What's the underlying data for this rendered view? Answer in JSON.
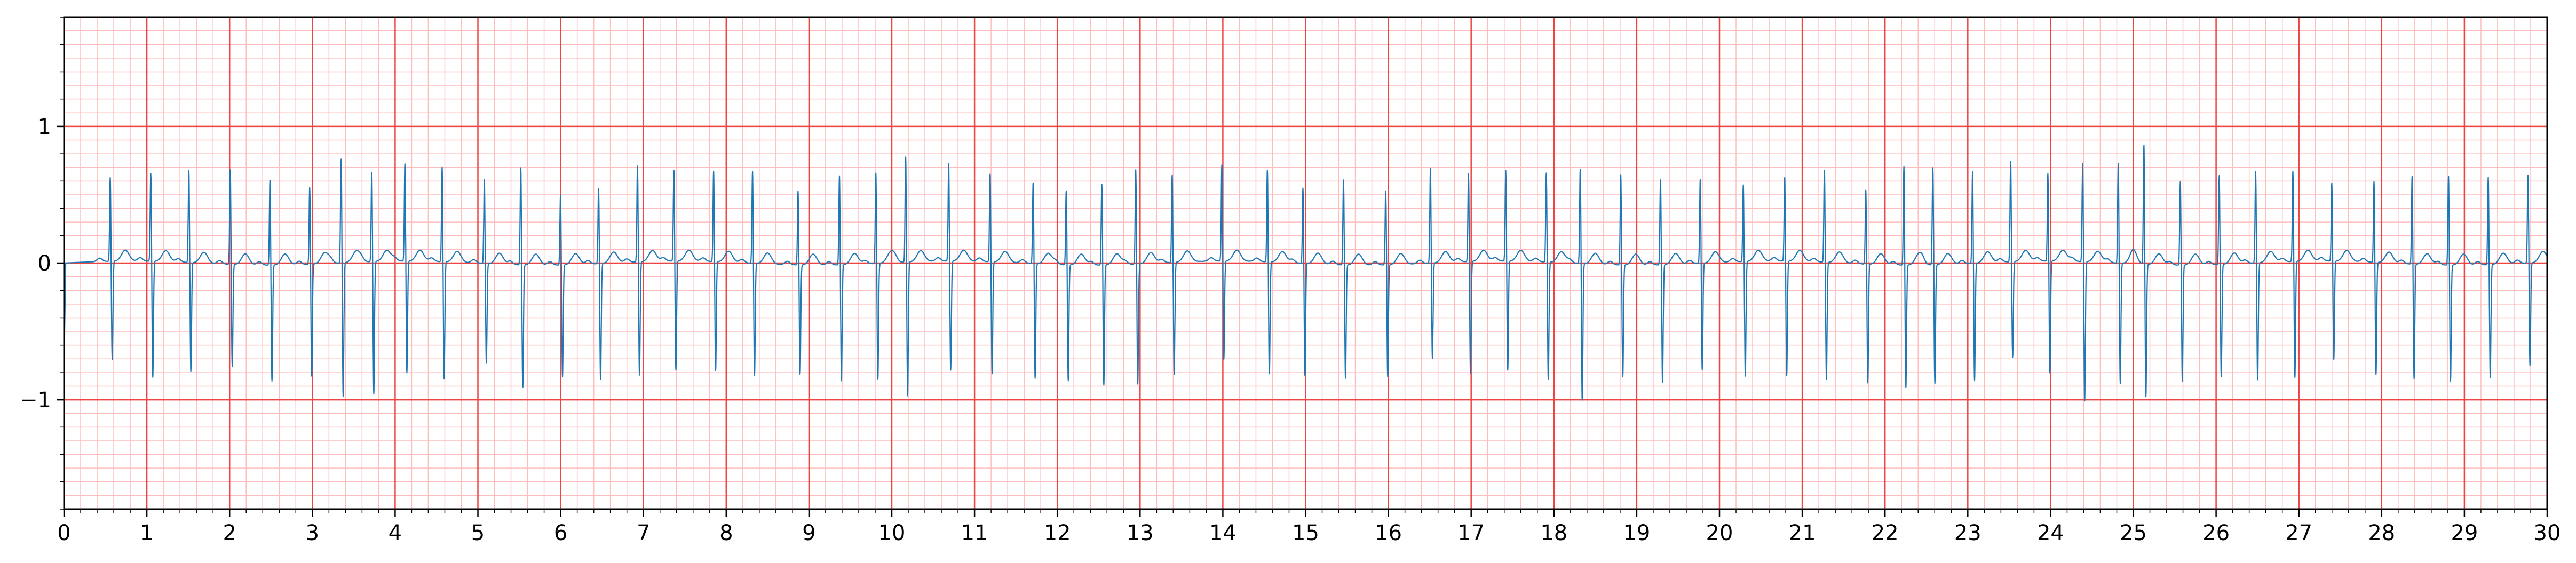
{
  "chart_data": {
    "type": "line",
    "title": "",
    "xlabel": "",
    "ylabel": "",
    "xlim": [
      0,
      30
    ],
    "ylim": [
      -1.8,
      1.8
    ],
    "x_ticks": [
      "0",
      "1",
      "2",
      "3",
      "4",
      "5",
      "6",
      "7",
      "8",
      "9",
      "10",
      "11",
      "12",
      "13",
      "14",
      "15",
      "16",
      "17",
      "18",
      "19",
      "20",
      "21",
      "22",
      "23",
      "24",
      "25",
      "26",
      "27",
      "28",
      "29",
      "30"
    ],
    "y_ticks": [
      "1",
      "0",
      "−1"
    ],
    "y_tick_values": [
      1,
      0,
      -1
    ],
    "grid": true,
    "major_grid": {
      "x_step": 1,
      "y_step": 1
    },
    "minor_grid": {
      "x_step": 0.2,
      "y_step": 0.1
    },
    "colors": {
      "line": "#1f77b4",
      "major_grid": "#ee4444",
      "minor_grid": "#ffbcbc",
      "axes": "#000000",
      "background": "#ffffff"
    },
    "series": [
      {
        "name": "",
        "beats": [
          {
            "t": 0.57,
            "r": 0.62,
            "s": -0.72
          },
          {
            "t": 1.06,
            "r": 0.65,
            "s": -0.85
          },
          {
            "t": 1.52,
            "r": 0.68,
            "s": -0.8
          },
          {
            "t": 2.02,
            "r": 0.7,
            "s": -0.75
          },
          {
            "t": 2.5,
            "r": 0.63,
            "s": -0.85
          },
          {
            "t": 2.98,
            "r": 0.57,
            "s": -0.82
          },
          {
            "t": 3.36,
            "r": 0.77,
            "s": -0.98
          },
          {
            "t": 3.73,
            "r": 0.66,
            "s": -0.97
          },
          {
            "t": 4.13,
            "r": 0.72,
            "s": -0.82
          },
          {
            "t": 4.58,
            "r": 0.7,
            "s": -0.86
          },
          {
            "t": 5.09,
            "r": 0.62,
            "s": -0.73
          },
          {
            "t": 5.53,
            "r": 0.72,
            "s": -0.9
          },
          {
            "t": 6.01,
            "r": 0.52,
            "s": -0.82
          },
          {
            "t": 6.47,
            "r": 0.56,
            "s": -0.85
          },
          {
            "t": 6.94,
            "r": 0.71,
            "s": -0.83
          },
          {
            "t": 7.38,
            "r": 0.67,
            "s": -0.8
          },
          {
            "t": 7.86,
            "r": 0.67,
            "s": -0.8
          },
          {
            "t": 8.33,
            "r": 0.68,
            "s": -0.82
          },
          {
            "t": 8.88,
            "r": 0.55,
            "s": -0.8
          },
          {
            "t": 9.38,
            "r": 0.66,
            "s": -0.85
          },
          {
            "t": 9.82,
            "r": 0.67,
            "s": -0.85
          },
          {
            "t": 10.18,
            "r": 0.78,
            "s": -0.98
          },
          {
            "t": 10.7,
            "r": 0.72,
            "s": -0.8
          },
          {
            "t": 11.2,
            "r": 0.65,
            "s": -0.82
          },
          {
            "t": 11.72,
            "r": 0.6,
            "s": -0.84
          },
          {
            "t": 12.12,
            "r": 0.55,
            "s": -0.85
          },
          {
            "t": 12.55,
            "r": 0.6,
            "s": -0.88
          },
          {
            "t": 12.96,
            "r": 0.7,
            "s": -0.88
          },
          {
            "t": 13.4,
            "r": 0.65,
            "s": -0.82
          },
          {
            "t": 14.0,
            "r": 0.71,
            "s": -0.72
          },
          {
            "t": 14.55,
            "r": 0.68,
            "s": -0.82
          },
          {
            "t": 14.98,
            "r": 0.56,
            "s": -0.82
          },
          {
            "t": 15.47,
            "r": 0.63,
            "s": -0.83
          },
          {
            "t": 15.98,
            "r": 0.55,
            "s": -0.82
          },
          {
            "t": 16.52,
            "r": 0.7,
            "s": -0.7
          },
          {
            "t": 16.98,
            "r": 0.65,
            "s": -0.82
          },
          {
            "t": 17.43,
            "r": 0.67,
            "s": -0.8
          },
          {
            "t": 17.92,
            "r": 0.66,
            "s": -0.86
          },
          {
            "t": 18.33,
            "r": 0.7,
            "s": -1.0
          },
          {
            "t": 18.82,
            "r": 0.67,
            "s": -0.82
          },
          {
            "t": 19.3,
            "r": 0.63,
            "s": -0.86
          },
          {
            "t": 19.78,
            "r": 0.62,
            "s": -0.78
          },
          {
            "t": 20.3,
            "r": 0.57,
            "s": -0.84
          },
          {
            "t": 20.8,
            "r": 0.62,
            "s": -0.84
          },
          {
            "t": 21.28,
            "r": 0.68,
            "s": -0.86
          },
          {
            "t": 21.78,
            "r": 0.55,
            "s": -0.87
          },
          {
            "t": 22.24,
            "r": 0.73,
            "s": -0.9
          },
          {
            "t": 22.59,
            "r": 0.72,
            "s": -0.87
          },
          {
            "t": 23.07,
            "r": 0.68,
            "s": -0.86
          },
          {
            "t": 23.53,
            "r": 0.74,
            "s": -0.7
          },
          {
            "t": 23.98,
            "r": 0.65,
            "s": -0.82
          },
          {
            "t": 24.4,
            "r": 0.73,
            "s": -1.02
          },
          {
            "t": 24.83,
            "r": 0.74,
            "s": -0.88
          },
          {
            "t": 25.14,
            "r": 0.88,
            "s": -0.97
          },
          {
            "t": 25.58,
            "r": 0.62,
            "s": -0.85
          },
          {
            "t": 26.05,
            "r": 0.66,
            "s": -0.82
          },
          {
            "t": 26.49,
            "r": 0.68,
            "s": -0.86
          },
          {
            "t": 26.94,
            "r": 0.67,
            "s": -0.85
          },
          {
            "t": 27.41,
            "r": 0.58,
            "s": -0.72
          },
          {
            "t": 27.92,
            "r": 0.6,
            "s": -0.82
          },
          {
            "t": 28.38,
            "r": 0.65,
            "s": -0.84
          },
          {
            "t": 28.82,
            "r": 0.66,
            "s": -0.85
          },
          {
            "t": 29.3,
            "r": 0.65,
            "s": -0.83
          },
          {
            "t": 29.78,
            "r": 0.65,
            "s": -0.75
          }
        ]
      }
    ]
  }
}
